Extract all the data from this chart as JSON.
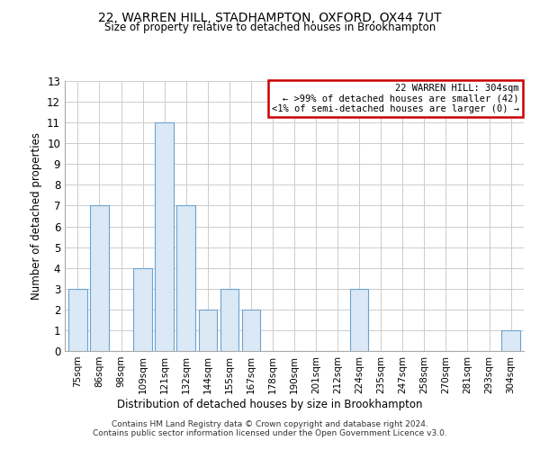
{
  "title": "22, WARREN HILL, STADHAMPTON, OXFORD, OX44 7UT",
  "subtitle": "Size of property relative to detached houses in Brookhampton",
  "xlabel": "Distribution of detached houses by size in Brookhampton",
  "ylabel": "Number of detached properties",
  "categories": [
    "75sqm",
    "86sqm",
    "98sqm",
    "109sqm",
    "121sqm",
    "132sqm",
    "144sqm",
    "155sqm",
    "167sqm",
    "178sqm",
    "190sqm",
    "201sqm",
    "212sqm",
    "224sqm",
    "235sqm",
    "247sqm",
    "258sqm",
    "270sqm",
    "281sqm",
    "293sqm",
    "304sqm"
  ],
  "values": [
    3,
    7,
    0,
    4,
    11,
    7,
    2,
    3,
    2,
    0,
    0,
    0,
    0,
    3,
    0,
    0,
    0,
    0,
    0,
    0,
    1
  ],
  "bar_color": "#dbe8f5",
  "bar_edge_color": "#6ba3d0",
  "ylim": [
    0,
    13
  ],
  "yticks": [
    0,
    1,
    2,
    3,
    4,
    5,
    6,
    7,
    8,
    9,
    10,
    11,
    12,
    13
  ],
  "legend_title": "22 WARREN HILL: 304sqm",
  "legend_line1": "← >99% of detached houses are smaller (42)",
  "legend_line2": "<1% of semi-detached houses are larger (0) →",
  "legend_box_color": "#ffffff",
  "legend_box_edge_color": "#cc0000",
  "footer_line1": "Contains HM Land Registry data © Crown copyright and database right 2024.",
  "footer_line2": "Contains public sector information licensed under the Open Government Licence v3.0.",
  "background_color": "#ffffff",
  "grid_color": "#cccccc"
}
